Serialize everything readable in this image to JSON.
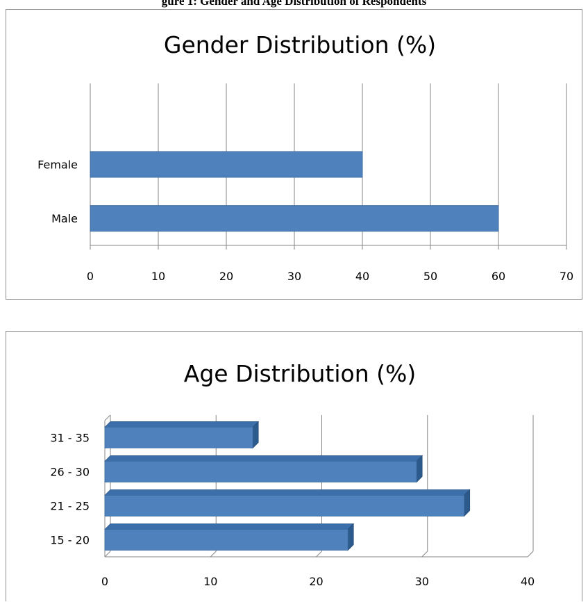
{
  "caption": "gure 1: Gender and Age Distribution of Respondents",
  "chart_data": [
    {
      "type": "bar",
      "orientation": "horizontal",
      "title": "Gender Distribution (%)",
      "categories": [
        "Male",
        "Female"
      ],
      "values": [
        60,
        40
      ],
      "xlim": [
        0,
        70
      ],
      "xticks": [
        0,
        10,
        20,
        30,
        40,
        50,
        60,
        70
      ],
      "grid": "vertical",
      "color": "#4f81bd"
    },
    {
      "type": "bar",
      "orientation": "horizontal",
      "style": "3d",
      "title": "Age Distribution (%)",
      "categories": [
        "15 - 20",
        "21 - 25",
        "26 - 30",
        "31 - 35"
      ],
      "values": [
        23,
        34,
        29.5,
        14
      ],
      "xlim": [
        0,
        40
      ],
      "xticks": [
        0,
        10,
        20,
        30,
        40
      ],
      "grid": "vertical",
      "color": "#4f81bd"
    }
  ]
}
